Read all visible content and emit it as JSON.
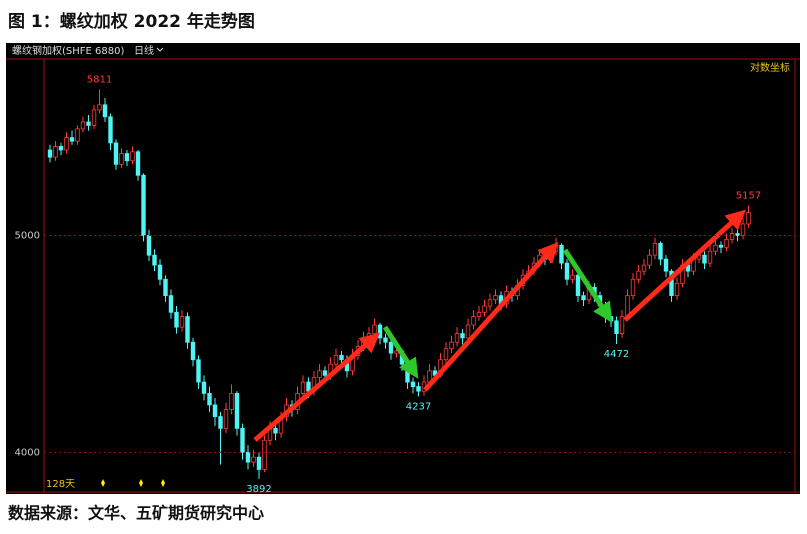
{
  "chart_data": {
    "type": "candlestick",
    "title": "图 1：螺纹加权 2022 年走势图",
    "instrument": "螺纹钢加权(SHFE 6880)",
    "period": "日线",
    "scale_label": "对数坐标",
    "days_label": "128天",
    "source": "数据来源：文华、五矿期货研究中心",
    "log_scale": true,
    "up_color": "#ff3b3b",
    "down_color": "#4ff5f5",
    "ylim": [
      3840,
      5990
    ],
    "yticks": [
      4000,
      5000
    ],
    "open": [
      5460,
      5420,
      5480,
      5460,
      5530,
      5510,
      5580,
      5620,
      5600,
      5690,
      5720,
      5650,
      5500,
      5380,
      5440,
      5400,
      5450,
      5320,
      5000,
      4900,
      4850,
      4780,
      4700,
      4620,
      4550,
      4600,
      4480,
      4400,
      4300,
      4250,
      4200,
      4150,
      4100,
      4180,
      4250,
      4100,
      4000,
      3960,
      3980,
      3930,
      4050,
      4100,
      4080,
      4150,
      4200,
      4180,
      4250,
      4300,
      4260,
      4320,
      4350,
      4330,
      4380,
      4420,
      4400,
      4350,
      4420,
      4460,
      4500,
      4520,
      4560,
      4500,
      4480,
      4430,
      4440,
      4380,
      4300,
      4280,
      4260,
      4300,
      4350,
      4330,
      4400,
      4450,
      4480,
      4520,
      4500,
      4560,
      4600,
      4620,
      4650,
      4680,
      4700,
      4660,
      4720,
      4700,
      4750,
      4800,
      4820,
      4860,
      4900,
      4880,
      4920,
      4950,
      4860,
      4780,
      4800,
      4700,
      4680,
      4740,
      4700,
      4650,
      4600,
      4580,
      4520,
      4600,
      4700,
      4780,
      4820,
      4850,
      4900,
      4960,
      4880,
      4820,
      4700,
      4760,
      4850,
      4820,
      4880,
      4900,
      4860,
      4920,
      4950,
      4940,
      4980,
      5010,
      5000,
      5060
    ],
    "high": [
      5490,
      5510,
      5500,
      5560,
      5570,
      5600,
      5650,
      5660,
      5720,
      5811,
      5760,
      5670,
      5520,
      5470,
      5460,
      5480,
      5460,
      5330,
      5030,
      4930,
      4880,
      4800,
      4730,
      4650,
      4630,
      4620,
      4500,
      4420,
      4330,
      4280,
      4230,
      4170,
      4210,
      4290,
      4260,
      4120,
      4030,
      4010,
      4000,
      4070,
      4130,
      4120,
      4170,
      4230,
      4220,
      4280,
      4330,
      4320,
      4350,
      4380,
      4370,
      4410,
      4450,
      4440,
      4420,
      4450,
      4490,
      4530,
      4550,
      4590,
      4570,
      4520,
      4500,
      4470,
      4450,
      4400,
      4320,
      4300,
      4330,
      4380,
      4370,
      4430,
      4480,
      4510,
      4550,
      4540,
      4590,
      4630,
      4650,
      4680,
      4710,
      4730,
      4720,
      4750,
      4740,
      4780,
      4830,
      4850,
      4890,
      4930,
      4920,
      4950,
      4990,
      4960,
      4880,
      4830,
      4810,
      4720,
      4770,
      4760,
      4720,
      4670,
      4620,
      4600,
      4630,
      4730,
      4810,
      4850,
      4880,
      4930,
      4990,
      4970,
      4900,
      4830,
      4790,
      4880,
      4870,
      4910,
      4930,
      4920,
      4950,
      4980,
      4970,
      5010,
      5040,
      5030,
      5090,
      5157
    ],
    "low": [
      5390,
      5400,
      5430,
      5440,
      5490,
      5490,
      5560,
      5570,
      5580,
      5670,
      5620,
      5460,
      5350,
      5360,
      5370,
      5380,
      5290,
      4970,
      4870,
      4820,
      4750,
      4670,
      4590,
      4520,
      4530,
      4450,
      4370,
      4270,
      4220,
      4170,
      4110,
      3950,
      4080,
      4160,
      4070,
      3970,
      3930,
      3940,
      3892,
      3920,
      4030,
      4050,
      4060,
      4130,
      4150,
      4160,
      4230,
      4230,
      4240,
      4300,
      4300,
      4310,
      4360,
      4370,
      4320,
      4330,
      4400,
      4440,
      4480,
      4500,
      4470,
      4450,
      4400,
      4410,
      4350,
      4270,
      4250,
      4237,
      4240,
      4280,
      4300,
      4320,
      4380,
      4430,
      4460,
      4470,
      4480,
      4540,
      4580,
      4600,
      4630,
      4660,
      4630,
      4640,
      4670,
      4680,
      4730,
      4780,
      4800,
      4840,
      4850,
      4860,
      4900,
      4830,
      4750,
      4760,
      4670,
      4650,
      4660,
      4670,
      4620,
      4570,
      4550,
      4472,
      4500,
      4580,
      4680,
      4760,
      4800,
      4830,
      4880,
      4850,
      4790,
      4670,
      4680,
      4740,
      4790,
      4800,
      4860,
      4830,
      4840,
      4900,
      4910,
      4920,
      4960,
      4970,
      4980,
      5040
    ],
    "close": [
      5420,
      5480,
      5460,
      5530,
      5510,
      5580,
      5620,
      5600,
      5690,
      5720,
      5650,
      5500,
      5380,
      5440,
      5400,
      5450,
      5320,
      5000,
      4900,
      4850,
      4780,
      4700,
      4620,
      4550,
      4600,
      4480,
      4400,
      4300,
      4250,
      4200,
      4150,
      4100,
      4180,
      4250,
      4100,
      4000,
      3960,
      3980,
      3930,
      4050,
      4100,
      4080,
      4150,
      4200,
      4180,
      4250,
      4300,
      4260,
      4320,
      4350,
      4330,
      4380,
      4420,
      4400,
      4350,
      4420,
      4460,
      4500,
      4520,
      4560,
      4500,
      4480,
      4430,
      4440,
      4380,
      4300,
      4280,
      4260,
      4300,
      4350,
      4330,
      4400,
      4450,
      4480,
      4520,
      4500,
      4560,
      4600,
      4620,
      4650,
      4680,
      4700,
      4660,
      4720,
      4700,
      4750,
      4800,
      4820,
      4860,
      4900,
      4880,
      4920,
      4950,
      4860,
      4780,
      4800,
      4700,
      4680,
      4740,
      4700,
      4650,
      4600,
      4580,
      4520,
      4600,
      4700,
      4780,
      4820,
      4850,
      4900,
      4960,
      4880,
      4820,
      4700,
      4760,
      4850,
      4820,
      4880,
      4900,
      4860,
      4920,
      4950,
      4940,
      4980,
      5010,
      5000,
      5060,
      5120
    ]
  }
}
